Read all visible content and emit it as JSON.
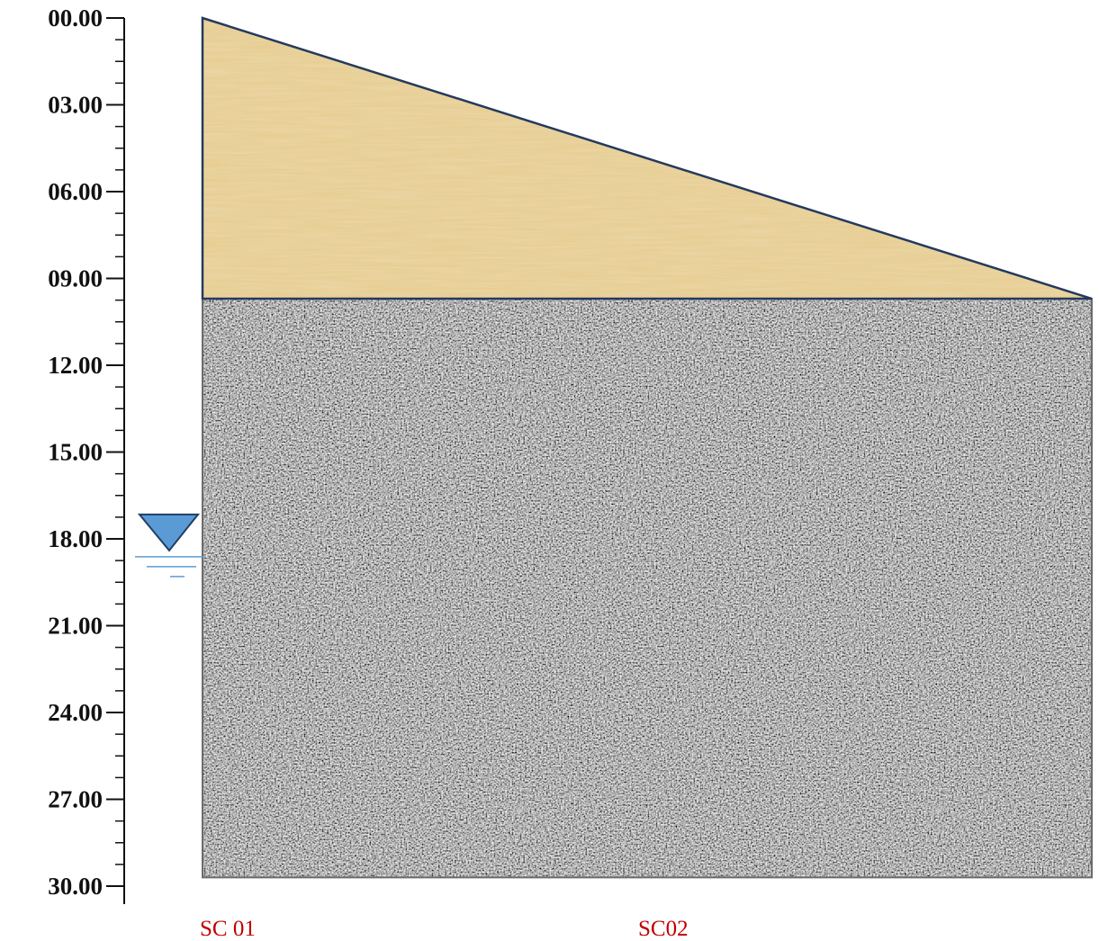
{
  "depth_axis": {
    "min": 0,
    "max": 30,
    "major_step": 3,
    "minor_step": 0.75,
    "tick_labels": [
      "00.00",
      "03.00",
      "06.00",
      "09.00",
      "12.00",
      "15.00",
      "18.00",
      "21.00",
      "24.00",
      "27.00",
      "30.00"
    ]
  },
  "layers": [
    {
      "name": "sand-layer",
      "shape": "wedge",
      "top_depth_left": 0,
      "top_depth_right": 9.7,
      "bottom_depth": 9.7,
      "color": "#e6cb8e",
      "outline_color": "#243a5e"
    },
    {
      "name": "gravel-layer",
      "shape": "rectangle",
      "top_depth": 9.7,
      "bottom_depth": 29.7,
      "color": "#a8a8a8",
      "outline_color": "#6b6b6b"
    }
  ],
  "water_table": {
    "depth": 18.4,
    "color": "#5b9bd5"
  },
  "boreholes": [
    {
      "label": "SC 01",
      "color": "#c00000"
    },
    {
      "label": "SC02",
      "color": "#c00000"
    }
  ]
}
